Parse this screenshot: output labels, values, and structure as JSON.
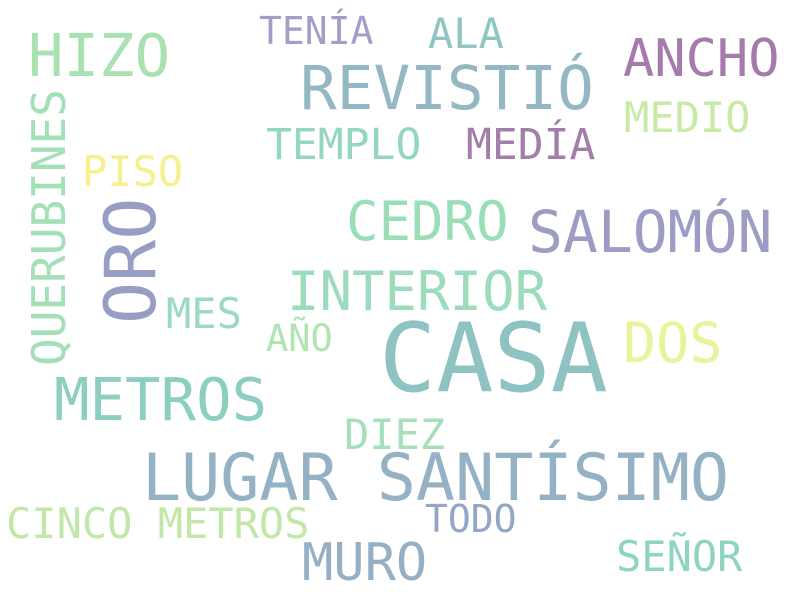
{
  "background": "#ffffff",
  "words": [
    {
      "id": "casa",
      "text": "CASA",
      "color": "#8ec2c3"
    },
    {
      "id": "lugar-santisimo",
      "text": "LUGAR SANTÍSIMO",
      "color": "#95b2c4"
    },
    {
      "id": "revistio",
      "text": "REVISTIÓ",
      "color": "#93b7c3"
    },
    {
      "id": "metros",
      "text": "METROS",
      "color": "#8ccebf"
    },
    {
      "id": "hizo",
      "text": "HIZO",
      "color": "#a9e2b0"
    },
    {
      "id": "salomon",
      "text": "SALOMÓN",
      "color": "#9d9cc5"
    },
    {
      "id": "oro",
      "text": "ORO",
      "color": "#969ec4"
    },
    {
      "id": "interior",
      "text": "INTERIOR",
      "color": "#9cdcbd"
    },
    {
      "id": "cedro",
      "text": "CEDRO",
      "color": "#9adeb8"
    },
    {
      "id": "ancho",
      "text": "ANCHO",
      "color": "#a47bab"
    },
    {
      "id": "dos",
      "text": "DOS",
      "color": "#eaf39a"
    },
    {
      "id": "muro",
      "text": "MURO",
      "color": "#95b0c5"
    },
    {
      "id": "querubines",
      "text": "QUERUBINES",
      "color": "#a3e0b8"
    },
    {
      "id": "templo",
      "text": "TEMPLO",
      "color": "#95d6c2"
    },
    {
      "id": "media",
      "text": "MEDÍA",
      "color": "#a27ea9"
    },
    {
      "id": "medio",
      "text": "MEDIO",
      "color": "#c7eaa5"
    },
    {
      "id": "piso",
      "text": "PISO",
      "color": "#f6f08f"
    },
    {
      "id": "mes",
      "text": "MES",
      "color": "#9adac1"
    },
    {
      "id": "cinco-metros",
      "text": "CINCO METROS",
      "color": "#c3e7a8"
    },
    {
      "id": "senor",
      "text": "SEÑOR",
      "color": "#8dd4c2"
    },
    {
      "id": "ala",
      "text": "ALA",
      "color": "#8fc6c3"
    },
    {
      "id": "diez",
      "text": "DIEZ",
      "color": "#a5e0ba"
    },
    {
      "id": "tenia",
      "text": "TENÍA",
      "color": "#a79bc8"
    },
    {
      "id": "todo",
      "text": "TODO",
      "color": "#93a6c5"
    },
    {
      "id": "ano",
      "text": "AÑO",
      "color": "#b0e4b3"
    }
  ]
}
